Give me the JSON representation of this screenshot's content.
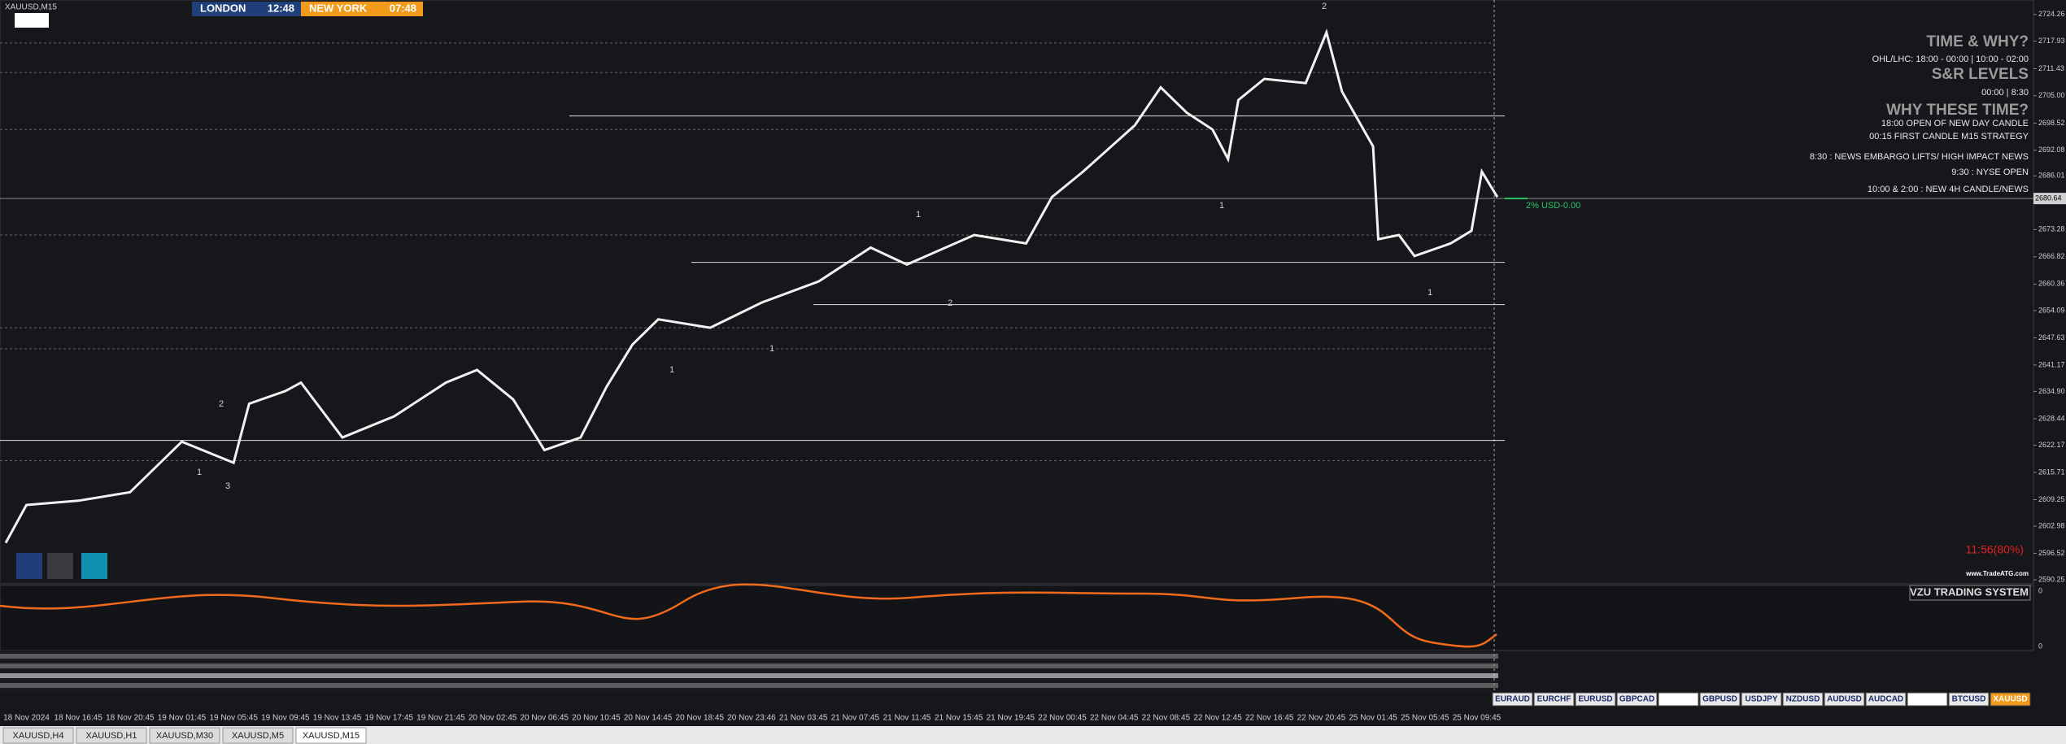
{
  "window": {
    "symbol": "XAUUSD,M15",
    "sessions": [
      {
        "city": "LONDON",
        "time": "12:48"
      },
      {
        "city": "NEW YORK",
        "time": "07:48"
      }
    ],
    "tabs": [
      "XAUUSD,H4",
      "XAUUSD,H1",
      "XAUUSD,M30",
      "XAUUSD,M5",
      "XAUUSD,M15"
    ],
    "active_tab": 4
  },
  "chart": {
    "xlim": [
      -0.51,
      38.75
    ],
    "ylim": [
      2589.3,
      2727.7
    ],
    "yticks": [
      2724.26,
      2717.93,
      2711.43,
      {
        "value": 2705,
        "label": "2705.00"
      },
      2698.52,
      2692.08,
      2686.01,
      2673.28,
      2666.82,
      2660.36,
      2654.09,
      2647.63,
      2641.17,
      {
        "value": 2634.9,
        "label": "2634.90"
      },
      2628.44,
      2622.17,
      2615.71,
      2609.25,
      2602.98,
      2596.52,
      2590.25
    ],
    "current_price": 2680.64,
    "time_labels": [
      "18 Nov 2024",
      "18 Nov 16:45",
      "18 Nov 20:45",
      "19 Nov 01:45",
      "19 Nov 05:45",
      "19 Nov 09:45",
      "19 Nov 13:45",
      "19 Nov 17:45",
      "19 Nov 21:45",
      "20 Nov 02:45",
      "20 Nov 06:45",
      "20 Nov 10:45",
      "20 Nov 14:45",
      "20 Nov 18:45",
      "20 Nov 23:46",
      "21 Nov 03:45",
      "21 Nov 07:45",
      "21 Nov 11:45",
      "21 Nov 15:45",
      "21 Nov 19:45",
      "22 Nov 00:45",
      "22 Nov 04:45",
      "22 Nov 08:45",
      "22 Nov 12:45",
      "22 Nov 16:45",
      "22 Nov 20:45",
      "25 Nov 01:45",
      "25 Nov 05:45",
      "25 Nov 09:45"
    ],
    "price": {
      "x": [
        -0.4,
        0,
        1.0,
        2.0,
        3.0,
        4.0,
        4.3,
        5.0,
        5.3,
        6.1,
        7.1,
        8.1,
        8.7,
        9.4,
        10.0,
        10.7,
        11.2,
        11.7,
        12.2,
        13.2,
        14.2,
        15.3,
        16.3,
        17.0,
        18.3,
        19.3,
        19.8,
        20.4,
        21.4,
        21.9,
        22.4,
        22.9,
        23.2,
        23.4,
        23.9,
        24.7,
        25.1,
        25.4,
        26.0,
        26.1,
        26.5,
        26.8,
        27.5,
        27.9,
        28.1,
        28.4
      ],
      "values": [
        2599,
        2608,
        2609,
        2611,
        2623,
        2618,
        2632,
        2635,
        2637,
        2624,
        2629,
        2637,
        2640,
        2633,
        2621,
        2624,
        2636,
        2646,
        2652,
        2650,
        2656,
        2661,
        2669,
        2665,
        2672,
        2670,
        2681,
        2687,
        2698,
        2707,
        2701,
        2697,
        2690,
        2704,
        2709,
        2708,
        2720,
        2706,
        2693,
        2671,
        2672,
        2667,
        2670,
        2673,
        2687,
        2681
      ]
    },
    "levels": [
      2700.2,
      2665.5,
      2655.5,
      2623.3
    ],
    "dashed_levels": [
      2717.5,
      2710.5,
      2697,
      2672,
      2650,
      2645,
      2618.5
    ],
    "wave_labels": [
      "2",
      "1",
      "3",
      "1",
      "1",
      "1",
      "2",
      "2",
      "1",
      "1"
    ],
    "risk_label": "2% USD-0.00",
    "timer": "11:56(80%)",
    "website": "www.TradeATG.com"
  },
  "info_panel": {
    "title1": "TIME & WHY?",
    "ohl": "OHL/LHC: 18:00 - 00:00 | 10:00 - 02:00",
    "title2": "S&R LEVELS",
    "sr_times": "00:00 | 8:30",
    "title3": "WHY THESE TIME?",
    "lines": [
      "18:00 OPEN OF NEW DAY CANDLE",
      "00:15 FIRST CANDLE M15 STRATEGY",
      "8:30 : NEWS EMBARGO LIFTS/ HIGH IMPACT NEWS",
      "9:30 : NYSE OPEN",
      "10:00 & 2:00 : NEW 4H CANDLE/NEWS"
    ]
  },
  "indicator": {
    "name": "VZU TRADING SYSTEM",
    "scale": [
      "0",
      "0"
    ]
  },
  "pairs": [
    "EURAUD",
    "EURCHF",
    "EURUSD",
    "GBPCAD",
    null,
    "GBPUSD",
    "USDJPY",
    "NZDUSD",
    "AUDUSD",
    "AUDCAD",
    null,
    "BTCUSD",
    "XAUUSD"
  ]
}
